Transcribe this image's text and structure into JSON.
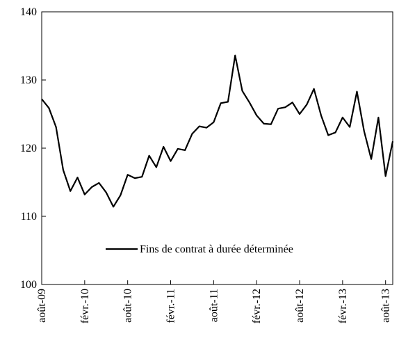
{
  "chart_data": {
    "type": "line",
    "title": "",
    "xlabel": "",
    "ylabel": "",
    "ylim": [
      100,
      140
    ],
    "yticks": [
      100,
      110,
      120,
      130,
      140
    ],
    "grid": false,
    "legend_position": "bottom-center",
    "x_tick_labels": [
      "août-09",
      "févr.-10",
      "août-10",
      "févr.-11",
      "août-11",
      "févr.-12",
      "août-12",
      "févr.-13",
      "août-13"
    ],
    "x_tick_months": [
      "2009-08",
      "2010-02",
      "2010-08",
      "2011-02",
      "2011-08",
      "2012-02",
      "2012-08",
      "2013-02",
      "2013-08"
    ],
    "x": [
      "2009-08",
      "2009-09",
      "2009-10",
      "2009-11",
      "2009-12",
      "2010-01",
      "2010-02",
      "2010-03",
      "2010-04",
      "2010-05",
      "2010-06",
      "2010-07",
      "2010-08",
      "2010-09",
      "2010-10",
      "2010-11",
      "2010-12",
      "2011-01",
      "2011-02",
      "2011-03",
      "2011-04",
      "2011-05",
      "2011-06",
      "2011-07",
      "2011-08",
      "2011-09",
      "2011-10",
      "2011-11",
      "2011-12",
      "2012-01",
      "2012-02",
      "2012-03",
      "2012-04",
      "2012-05",
      "2012-06",
      "2012-07",
      "2012-08",
      "2012-09",
      "2012-10",
      "2012-11",
      "2012-12",
      "2013-01",
      "2013-02",
      "2013-03",
      "2013-04",
      "2013-05",
      "2013-06",
      "2013-07",
      "2013-08",
      "2013-09"
    ],
    "series": [
      {
        "name": "Fins de contrat à durée déterminée",
        "color": "#000000",
        "values": [
          127.2,
          125.9,
          123.1,
          116.8,
          113.7,
          115.7,
          113.2,
          114.3,
          114.9,
          113.5,
          111.4,
          113.1,
          116.1,
          115.6,
          115.8,
          118.9,
          117.2,
          120.2,
          118.1,
          119.9,
          119.7,
          122.1,
          123.2,
          123.0,
          123.8,
          126.6,
          126.8,
          133.6,
          128.4,
          126.7,
          124.8,
          123.6,
          123.5,
          125.8,
          126.0,
          126.7,
          125.0,
          126.4,
          128.7,
          124.8,
          121.9,
          122.3,
          124.5,
          123.1,
          128.3,
          122.5,
          118.4,
          124.5,
          115.9,
          121.0
        ]
      }
    ]
  }
}
